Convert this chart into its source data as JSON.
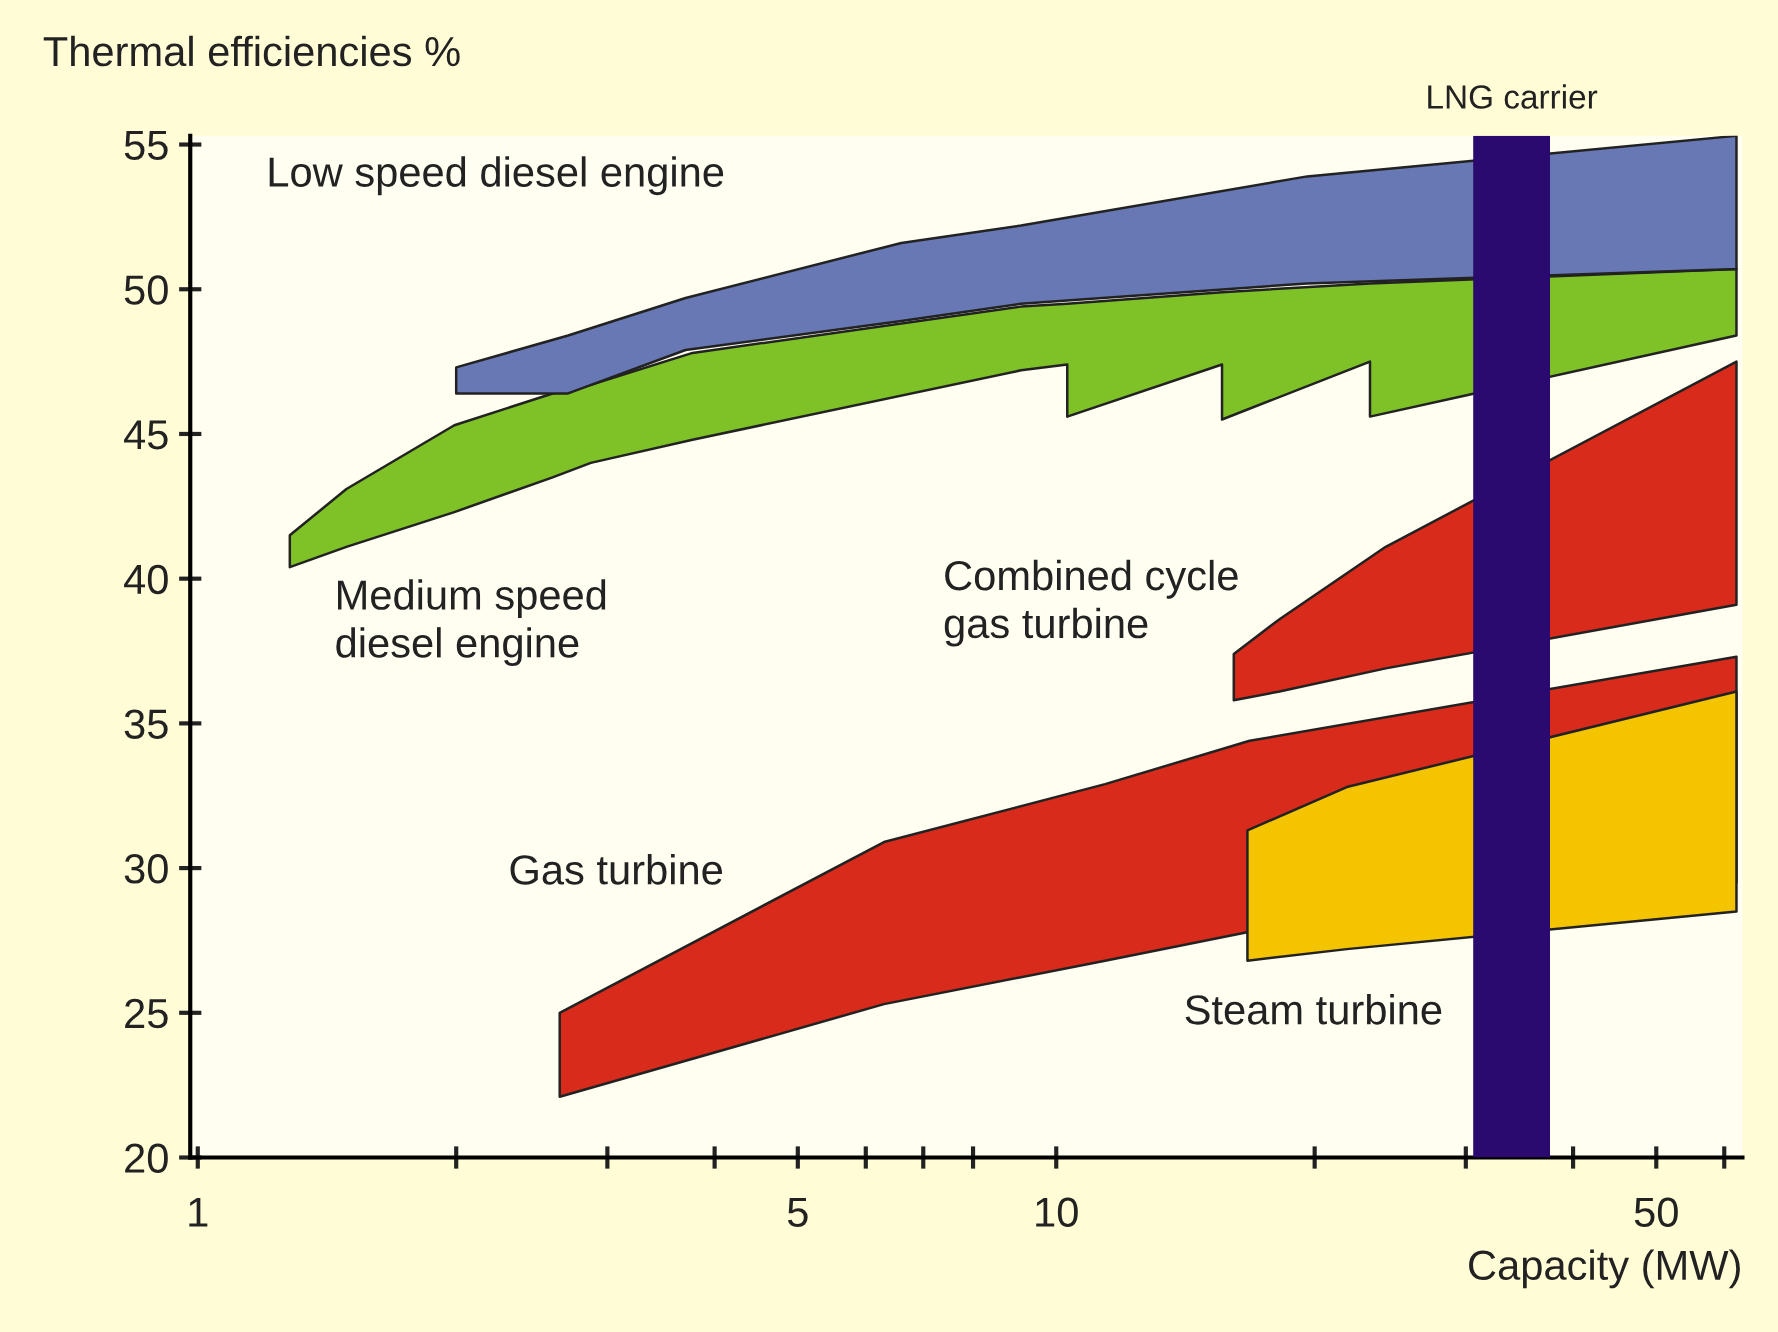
{
  "chart_data": {
    "type": "area",
    "ylabel": "Thermal efficiencies %",
    "xlabel": "Capacity (MW)",
    "log": "x",
    "xlim": [
      0.98,
      63
    ],
    "ylim": [
      20,
      55.3
    ],
    "xticks": [
      1,
      {
        "value": 2,
        "label": null
      },
      {
        "value": 3,
        "label": null
      },
      {
        "value": 4,
        "label": null
      },
      5,
      {
        "value": 6,
        "label": null
      },
      {
        "value": 7,
        "label": null
      },
      {
        "value": 8,
        "label": null
      },
      10,
      {
        "value": 20,
        "label": null
      },
      {
        "value": 30,
        "label": null
      },
      {
        "value": 40,
        "label": null
      },
      50,
      {
        "value": 60,
        "label": null
      }
    ],
    "yticks": [
      20,
      25,
      30,
      35,
      40,
      45,
      50,
      55
    ],
    "grid": false,
    "legend": false,
    "series": [
      {
        "name": "Medium speed\ndiesel engine",
        "color": "#7fc227",
        "x": [
          1.28,
          1.49,
          1.99,
          2.59,
          2.87,
          3.77,
          9.1,
          10.3,
          15.6,
          23.2,
          62,
          62,
          23.2,
          23.2,
          15.6,
          15.6,
          10.3,
          10.3,
          9.1,
          3.77,
          2.87,
          2.59,
          1.99,
          1.49,
          1.28
        ],
        "values": [
          41.5,
          43.1,
          45.3,
          46.4,
          46.7,
          47.8,
          49.4,
          49.5,
          49.9,
          50.2,
          50.7,
          48.4,
          45.6,
          47.5,
          45.5,
          47.4,
          45.6,
          47.4,
          47.2,
          44.8,
          44.0,
          43.5,
          42.3,
          41.1,
          40.4
        ]
      },
      {
        "name": "Low speed diesel engine",
        "color": "#6878b4",
        "x": [
          2.0,
          2.7,
          3.7,
          6.6,
          9.1,
          19.6,
          62,
          62,
          19.6,
          9.1,
          6.6,
          3.7,
          2.7,
          2.0
        ],
        "values": [
          47.3,
          48.4,
          49.7,
          51.6,
          52.2,
          53.9,
          55.3,
          50.7,
          50.2,
          49.5,
          48.9,
          47.9,
          46.4,
          46.4
        ]
      },
      {
        "name": "Combined cycle\ngas turbine",
        "color": "#d92b1b",
        "x": [
          16.1,
          18.2,
          24.2,
          62,
          62,
          24.2,
          18.2,
          16.1
        ],
        "values": [
          37.4,
          38.6,
          41.1,
          47.5,
          39.1,
          36.9,
          36.1,
          35.8
        ]
      },
      {
        "name": "Gas turbine",
        "color": "#d92b1b",
        "x": [
          2.64,
          6.3,
          11.4,
          16.8,
          62,
          62,
          16.8,
          11.4,
          6.3,
          2.64
        ],
        "values": [
          25.0,
          30.9,
          32.9,
          34.4,
          37.3,
          29.5,
          27.8,
          26.8,
          25.3,
          22.1
        ]
      },
      {
        "name": "Steam turbine",
        "color": "#f5c400",
        "x": [
          16.7,
          21.8,
          62,
          62,
          21.8,
          16.7
        ],
        "values": [
          31.3,
          32.8,
          36.1,
          28.5,
          27.2,
          26.8
        ]
      }
    ],
    "bands": [
      {
        "axis": "x",
        "from": 30.6,
        "to": 37.6,
        "label": "LNG carrier",
        "color": "#2a0a6e"
      }
    ]
  }
}
